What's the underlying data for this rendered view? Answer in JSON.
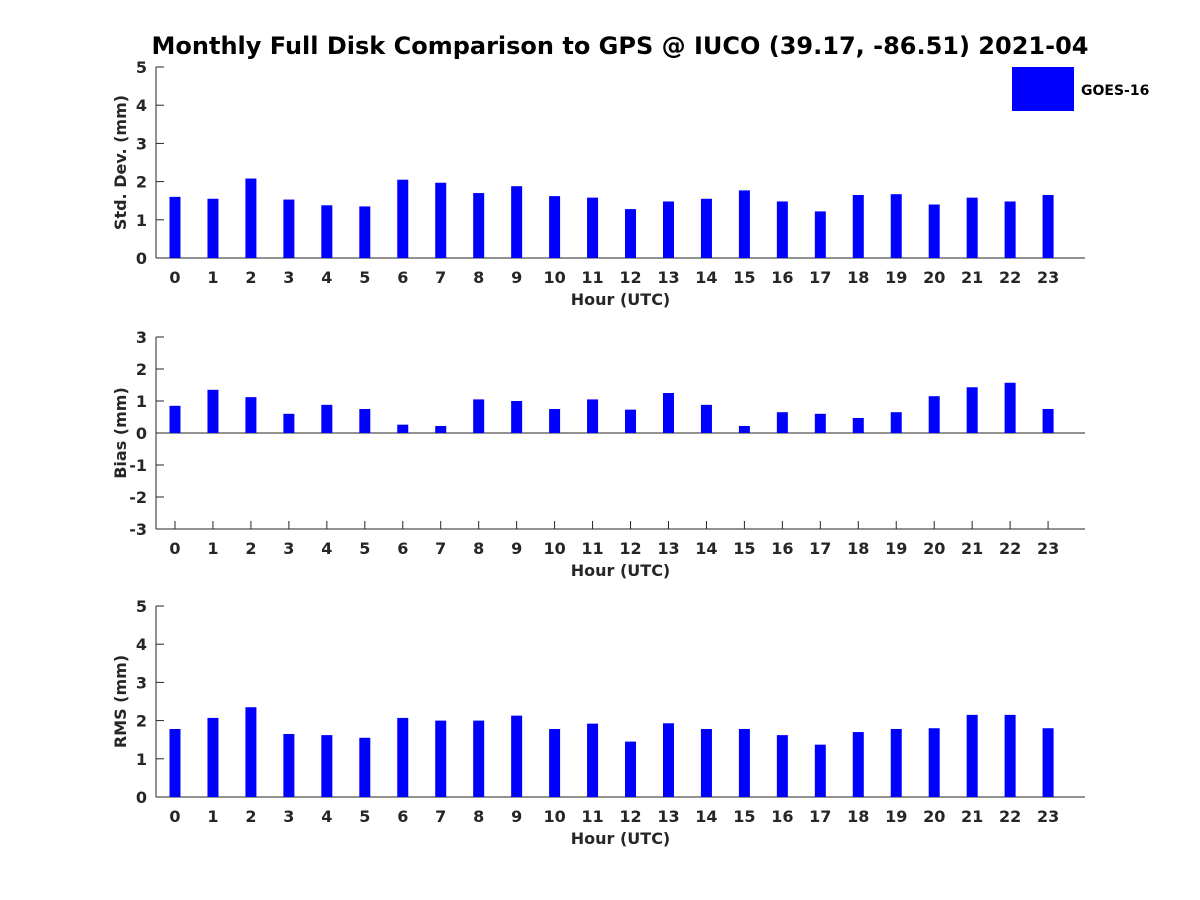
{
  "title": "Monthly Full Disk Comparison to GPS @ IUCO (39.17, -86.51) 2021-04",
  "legend": {
    "label": "GOES-16",
    "color": "#0000ff"
  },
  "chart_data": [
    {
      "type": "bar",
      "xlabel": "Hour (UTC)",
      "ylabel": "Std. Dev. (mm)",
      "ylim": [
        0,
        5
      ],
      "yticks": [
        "0",
        "1",
        "2",
        "3",
        "4",
        "5"
      ],
      "categories": [
        "0",
        "1",
        "2",
        "3",
        "4",
        "5",
        "6",
        "7",
        "8",
        "9",
        "10",
        "11",
        "12",
        "13",
        "14",
        "15",
        "16",
        "17",
        "18",
        "19",
        "20",
        "21",
        "22",
        "23"
      ],
      "series": [
        {
          "name": "GOES-16",
          "color": "#0000ff",
          "values": [
            1.6,
            1.55,
            2.08,
            1.53,
            1.38,
            1.35,
            2.05,
            1.97,
            1.7,
            1.88,
            1.62,
            1.58,
            1.28,
            1.48,
            1.55,
            1.77,
            1.48,
            1.22,
            1.65,
            1.67,
            1.4,
            1.58,
            1.48,
            1.65
          ]
        }
      ]
    },
    {
      "type": "bar",
      "xlabel": "Hour (UTC)",
      "ylabel": "Bias (mm)",
      "ylim": [
        -3,
        3
      ],
      "yticks": [
        "-3",
        "-2",
        "-1",
        "0",
        "1",
        "2",
        "3"
      ],
      "categories": [
        "0",
        "1",
        "2",
        "3",
        "4",
        "5",
        "6",
        "7",
        "8",
        "9",
        "10",
        "11",
        "12",
        "13",
        "14",
        "15",
        "16",
        "17",
        "18",
        "19",
        "20",
        "21",
        "22",
        "23"
      ],
      "series": [
        {
          "name": "GOES-16",
          "color": "#0000ff",
          "values": [
            0.85,
            1.35,
            1.12,
            0.6,
            0.88,
            0.75,
            0.26,
            0.22,
            1.05,
            1.0,
            0.75,
            1.05,
            0.73,
            1.25,
            0.88,
            0.22,
            0.65,
            0.6,
            0.47,
            0.65,
            1.15,
            1.43,
            1.57,
            0.75
          ]
        }
      ]
    },
    {
      "type": "bar",
      "xlabel": "Hour (UTC)",
      "ylabel": "RMS (mm)",
      "ylim": [
        0,
        5
      ],
      "yticks": [
        "0",
        "1",
        "2",
        "3",
        "4",
        "5"
      ],
      "categories": [
        "0",
        "1",
        "2",
        "3",
        "4",
        "5",
        "6",
        "7",
        "8",
        "9",
        "10",
        "11",
        "12",
        "13",
        "14",
        "15",
        "16",
        "17",
        "18",
        "19",
        "20",
        "21",
        "22",
        "23"
      ],
      "series": [
        {
          "name": "GOES-16",
          "color": "#0000ff",
          "values": [
            1.78,
            2.07,
            2.35,
            1.65,
            1.62,
            1.55,
            2.07,
            2.0,
            2.0,
            2.13,
            1.78,
            1.92,
            1.45,
            1.93,
            1.78,
            1.78,
            1.62,
            1.37,
            1.7,
            1.78,
            1.8,
            2.15,
            2.15,
            1.8
          ]
        }
      ]
    }
  ]
}
